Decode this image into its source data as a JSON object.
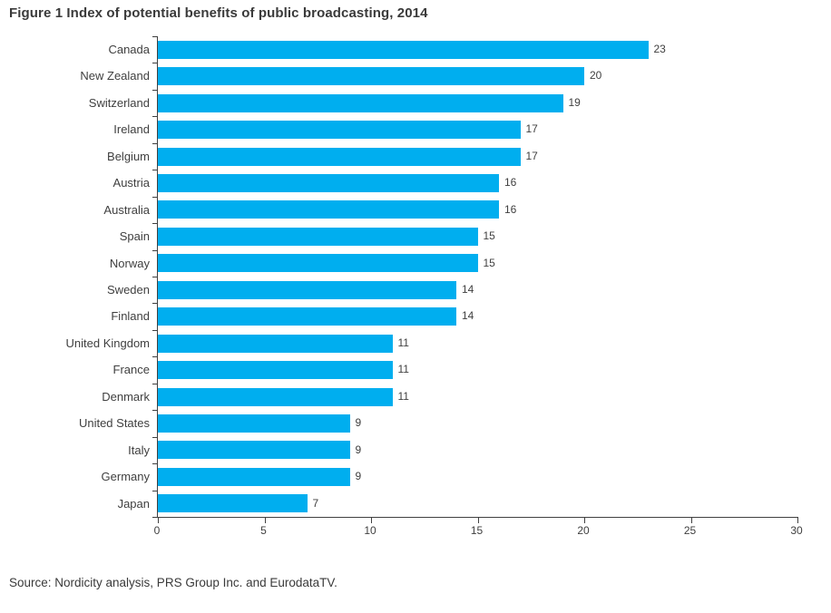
{
  "chart_data": {
    "type": "bar",
    "orientation": "horizontal",
    "title": "Figure 1 Index of potential benefits of public broadcasting, 2014",
    "categories": [
      "Canada",
      "New Zealand",
      "Switzerland",
      "Ireland",
      "Belgium",
      "Austria",
      "Australia",
      "Spain",
      "Norway",
      "Sweden",
      "Finland",
      "United Kingdom",
      "France",
      "Denmark",
      "United States",
      "Italy",
      "Germany",
      "Japan"
    ],
    "values": [
      23,
      20,
      19,
      17,
      17,
      16,
      16,
      15,
      15,
      14,
      14,
      11,
      11,
      11,
      9,
      9,
      9,
      7
    ],
    "xlabel": "",
    "ylabel": "",
    "xlim": [
      0,
      30
    ],
    "xticks": [
      0,
      5,
      10,
      15,
      20,
      25,
      30
    ],
    "grid": false,
    "legend": "none",
    "value_labels": true,
    "bar_color": "#00AEEF",
    "axis_color": "#404040",
    "text_color": "#3f3f3f"
  },
  "source_note": "Source: Nordicity analysis, PRS Group Inc. and EurodataTV."
}
